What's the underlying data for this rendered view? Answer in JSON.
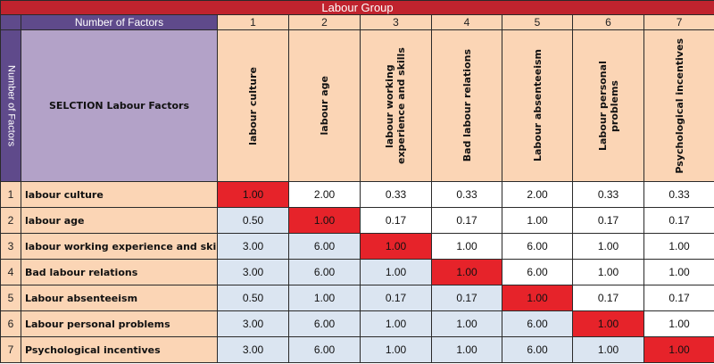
{
  "title": "Labour Group",
  "header": {
    "number_of_factors_label": "Number of Factors",
    "side_label": "Number of Factors",
    "selection_label": "SELCTION Labour Factors",
    "column_numbers": [
      "1",
      "2",
      "3",
      "4",
      "5",
      "6",
      "7"
    ],
    "column_labels": [
      "labour culture",
      "labour age",
      "labour working experience and skills",
      "Bad labour relations",
      "Labour absenteeism",
      "Labour personal problems",
      "Psychological incentives"
    ]
  },
  "rows": [
    {
      "index": "1",
      "label": "labour culture",
      "values": [
        "1.00",
        "2.00",
        "0.33",
        "0.33",
        "2.00",
        "0.33",
        "0.33"
      ]
    },
    {
      "index": "2",
      "label": "labour age",
      "values": [
        "0.50",
        "1.00",
        "0.17",
        "0.17",
        "1.00",
        "0.17",
        "0.17"
      ]
    },
    {
      "index": "3",
      "label": "labour working experience and skills",
      "values": [
        "3.00",
        "6.00",
        "1.00",
        "1.00",
        "6.00",
        "1.00",
        "1.00"
      ]
    },
    {
      "index": "4",
      "label": "Bad labour relations",
      "values": [
        "3.00",
        "6.00",
        "1.00",
        "1.00",
        "6.00",
        "1.00",
        "1.00"
      ]
    },
    {
      "index": "5",
      "label": "Labour absenteeism",
      "values": [
        "0.50",
        "1.00",
        "0.17",
        "0.17",
        "1.00",
        "0.17",
        "0.17"
      ]
    },
    {
      "index": "6",
      "label": "Labour personal problems",
      "values": [
        "3.00",
        "6.00",
        "1.00",
        "1.00",
        "6.00",
        "1.00",
        "1.00"
      ]
    },
    {
      "index": "7",
      "label": "Psychological incentives",
      "values": [
        "3.00",
        "6.00",
        "1.00",
        "1.00",
        "6.00",
        "1.00",
        "1.00"
      ]
    }
  ],
  "colors": {
    "title_bg": "#c0232e",
    "header_purple": "#5f4a8b",
    "selection_lavender": "#b3a2c8",
    "peach": "#fbd5b5",
    "lower_triangle_blue": "#dbe5f1",
    "upper_triangle_white": "#ffffff",
    "diagonal_red": "#e6232a"
  }
}
